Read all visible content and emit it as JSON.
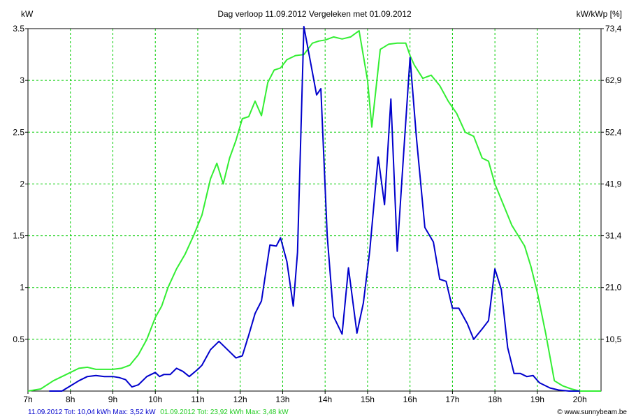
{
  "chart_data": {
    "type": "line",
    "title": "Dag  verloop 11.09.2012   Vergeleken met 01.09.2012",
    "ylabel_left": "kW",
    "ylabel_right": "kW/kWp [%]",
    "x_tick_labels": [
      "7h",
      "8h",
      "9h",
      "10h",
      "11h",
      "12h",
      "13h",
      "14h",
      "15h",
      "16h",
      "17h",
      "18h",
      "19h",
      "20h"
    ],
    "xlim": [
      7,
      20.5
    ],
    "ylim": [
      0,
      3.5
    ],
    "y_ticks": [
      0.5,
      1,
      1.5,
      2,
      2.5,
      3,
      3.5
    ],
    "y_tick_labels": [
      "0.5",
      "1",
      "1.5",
      "2",
      "2.5",
      "3",
      "3.5"
    ],
    "y2_ticks": [
      0.5,
      1,
      1.5,
      2,
      2.5,
      3,
      3.5
    ],
    "y2_tick_labels": [
      "10,5",
      "21,0",
      "31,4",
      "41,9",
      "52,4",
      "62,9",
      "73,4"
    ],
    "grid": true,
    "background": "#ffffff",
    "grid_color": "#00cc00",
    "series": [
      {
        "name": "11.09.2012",
        "color": "#0000cc",
        "x": [
          7.5,
          7.8,
          8.0,
          8.2,
          8.4,
          8.6,
          8.8,
          9.0,
          9.15,
          9.3,
          9.45,
          9.6,
          9.8,
          10.0,
          10.1,
          10.2,
          10.35,
          10.5,
          10.65,
          10.8,
          11.0,
          11.1,
          11.3,
          11.5,
          11.7,
          11.9,
          12.05,
          12.2,
          12.35,
          12.5,
          12.7,
          12.85,
          12.95,
          13.1,
          13.25,
          13.35,
          13.5,
          13.8,
          13.9,
          14.05,
          14.2,
          14.4,
          14.55,
          14.75,
          14.9,
          15.05,
          15.25,
          15.4,
          15.55,
          15.7,
          15.85,
          16.0,
          16.15,
          16.35,
          16.55,
          16.7,
          16.85,
          17.0,
          17.15,
          17.35,
          17.5,
          17.7,
          17.85,
          18.0,
          18.15,
          18.3,
          18.45,
          18.6,
          18.75,
          18.9,
          19.05,
          19.15,
          19.3,
          19.5,
          19.75,
          20.0
        ],
        "values": [
          0.0,
          0.0,
          0.05,
          0.1,
          0.14,
          0.15,
          0.14,
          0.14,
          0.13,
          0.11,
          0.04,
          0.06,
          0.14,
          0.18,
          0.14,
          0.16,
          0.16,
          0.22,
          0.19,
          0.14,
          0.21,
          0.25,
          0.4,
          0.48,
          0.4,
          0.32,
          0.34,
          0.54,
          0.75,
          0.87,
          1.41,
          1.4,
          1.48,
          1.25,
          0.82,
          1.34,
          3.52,
          2.86,
          2.92,
          1.5,
          0.72,
          0.55,
          1.19,
          0.56,
          0.85,
          1.35,
          2.26,
          1.8,
          2.82,
          1.35,
          2.3,
          3.22,
          2.45,
          1.58,
          1.44,
          1.08,
          1.06,
          0.8,
          0.8,
          0.65,
          0.5,
          0.6,
          0.68,
          1.18,
          0.98,
          0.42,
          0.17,
          0.17,
          0.14,
          0.15,
          0.08,
          0.06,
          0.03,
          0.01,
          0.0,
          0.0
        ]
      },
      {
        "name": "01.09.2012",
        "color": "#33ee33",
        "x": [
          7.0,
          7.3,
          7.6,
          7.9,
          8.2,
          8.4,
          8.6,
          8.8,
          9.0,
          9.2,
          9.4,
          9.6,
          9.8,
          10.0,
          10.15,
          10.3,
          10.5,
          10.7,
          10.9,
          11.1,
          11.3,
          11.45,
          11.6,
          11.75,
          11.9,
          12.05,
          12.2,
          12.35,
          12.5,
          12.65,
          12.8,
          12.95,
          13.1,
          13.3,
          13.5,
          13.7,
          13.85,
          14.0,
          14.2,
          14.4,
          14.6,
          14.8,
          15.0,
          15.1,
          15.3,
          15.5,
          15.7,
          15.9,
          16.0,
          16.1,
          16.3,
          16.5,
          16.7,
          16.9,
          17.1,
          17.3,
          17.5,
          17.7,
          17.85,
          18.0,
          18.2,
          18.4,
          18.55,
          18.7,
          18.85,
          19.0,
          19.2,
          19.4,
          19.6,
          19.8,
          20.0,
          20.5
        ],
        "values": [
          0.0,
          0.02,
          0.1,
          0.16,
          0.22,
          0.23,
          0.21,
          0.21,
          0.21,
          0.22,
          0.25,
          0.35,
          0.5,
          0.71,
          0.82,
          1.0,
          1.18,
          1.32,
          1.5,
          1.7,
          2.05,
          2.2,
          2.0,
          2.25,
          2.42,
          2.63,
          2.65,
          2.8,
          2.66,
          2.98,
          3.1,
          3.12,
          3.2,
          3.24,
          3.25,
          3.36,
          3.38,
          3.39,
          3.42,
          3.4,
          3.42,
          3.48,
          3.0,
          2.55,
          3.3,
          3.35,
          3.36,
          3.36,
          3.24,
          3.15,
          3.02,
          3.05,
          2.95,
          2.8,
          2.68,
          2.5,
          2.46,
          2.25,
          2.22,
          2.0,
          1.8,
          1.6,
          1.5,
          1.4,
          1.2,
          0.95,
          0.55,
          0.1,
          0.05,
          0.02,
          0.0,
          0.0
        ]
      }
    ],
    "footer": {
      "blue_text": "11.09.2012 Tot: 10,04 kWh Max: 3,52 kW",
      "green_text": "01.09.2012 Tot: 23,92 kWh Max: 3,48 kW",
      "credit": "© www.sunnybeam.be"
    }
  }
}
